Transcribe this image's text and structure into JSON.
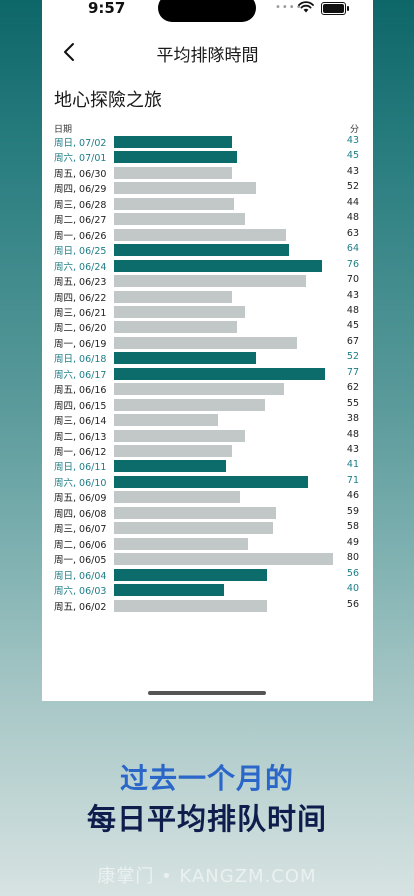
{
  "status": {
    "time": "9:57"
  },
  "nav": {
    "title": "平均排隊時間"
  },
  "ride": "地心探險之旅",
  "headers": {
    "date": "日期",
    "minutes": "分"
  },
  "rows": [
    {
      "label": "周日, 07/02",
      "value": 43,
      "weekend": true
    },
    {
      "label": "周六, 07/01",
      "value": 45,
      "weekend": true
    },
    {
      "label": "周五, 06/30",
      "value": 43,
      "weekend": false
    },
    {
      "label": "周四, 06/29",
      "value": 52,
      "weekend": false
    },
    {
      "label": "周三, 06/28",
      "value": 44,
      "weekend": false
    },
    {
      "label": "周二, 06/27",
      "value": 48,
      "weekend": false
    },
    {
      "label": "周一, 06/26",
      "value": 63,
      "weekend": false
    },
    {
      "label": "周日, 06/25",
      "value": 64,
      "weekend": true
    },
    {
      "label": "周六, 06/24",
      "value": 76,
      "weekend": true
    },
    {
      "label": "周五, 06/23",
      "value": 70,
      "weekend": false
    },
    {
      "label": "周四, 06/22",
      "value": 43,
      "weekend": false
    },
    {
      "label": "周三, 06/21",
      "value": 48,
      "weekend": false
    },
    {
      "label": "周二, 06/20",
      "value": 45,
      "weekend": false
    },
    {
      "label": "周一, 06/19",
      "value": 67,
      "weekend": false
    },
    {
      "label": "周日, 06/18",
      "value": 52,
      "weekend": true
    },
    {
      "label": "周六, 06/17",
      "value": 77,
      "weekend": true
    },
    {
      "label": "周五, 06/16",
      "value": 62,
      "weekend": false
    },
    {
      "label": "周四, 06/15",
      "value": 55,
      "weekend": false
    },
    {
      "label": "周三, 06/14",
      "value": 38,
      "weekend": false
    },
    {
      "label": "周二, 06/13",
      "value": 48,
      "weekend": false
    },
    {
      "label": "周一, 06/12",
      "value": 43,
      "weekend": false
    },
    {
      "label": "周日, 06/11",
      "value": 41,
      "weekend": true
    },
    {
      "label": "周六, 06/10",
      "value": 71,
      "weekend": true
    },
    {
      "label": "周五, 06/09",
      "value": 46,
      "weekend": false
    },
    {
      "label": "周四, 06/08",
      "value": 59,
      "weekend": false
    },
    {
      "label": "周三, 06/07",
      "value": 58,
      "weekend": false
    },
    {
      "label": "周二, 06/06",
      "value": 49,
      "weekend": false
    },
    {
      "label": "周一, 06/05",
      "value": 80,
      "weekend": false
    },
    {
      "label": "周日, 06/04",
      "value": 56,
      "weekend": true
    },
    {
      "label": "周六, 06/03",
      "value": 40,
      "weekend": true
    },
    {
      "label": "周五, 06/02",
      "value": 56,
      "weekend": false
    }
  ],
  "colors": {
    "weekend_bar": "#0c6b6b",
    "weekday_bar": "#c2c8c8",
    "weekend_text": "#1d7e86"
  },
  "caption": {
    "line1": "过去一个月的",
    "line2": "每日平均排队时间"
  },
  "watermark": "康掌门 • KANGZM.COM"
}
